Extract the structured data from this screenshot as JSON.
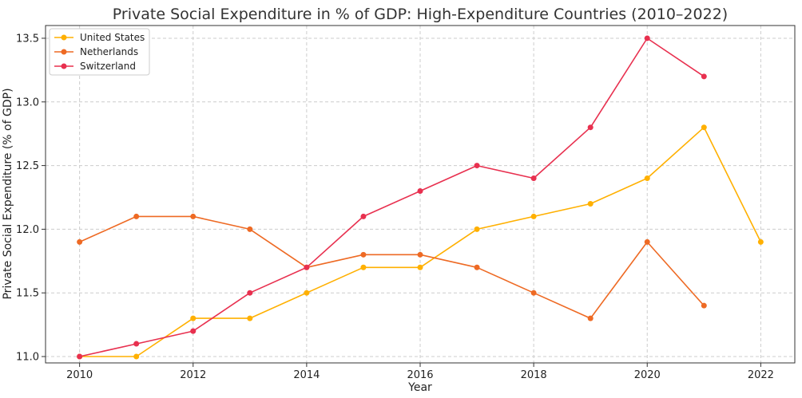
{
  "chart_data": {
    "type": "line",
    "title": "Private Social Expenditure in % of GDP: High-Expenditure Countries (2010–2022)",
    "xlabel": "Year",
    "ylabel": "Private Social Expenditure (% of GDP)",
    "x_ticks": [
      2010,
      2012,
      2014,
      2016,
      2018,
      2020,
      2022
    ],
    "y_ticks": [
      11.0,
      11.5,
      12.0,
      12.5,
      13.0,
      13.5
    ],
    "xlim": [
      2009.4,
      2022.6
    ],
    "ylim": [
      10.95,
      13.6
    ],
    "grid": true,
    "legend_position": "top-left",
    "series": [
      {
        "name": "United States",
        "color": "#FFB000",
        "points": [
          {
            "x": 2010,
            "y": 11.0
          },
          {
            "x": 2011,
            "y": 11.0
          },
          {
            "x": 2012,
            "y": 11.3
          },
          {
            "x": 2013,
            "y": 11.3
          },
          {
            "x": 2014,
            "y": 11.5
          },
          {
            "x": 2015,
            "y": 11.7
          },
          {
            "x": 2016,
            "y": 11.7
          },
          {
            "x": 2017,
            "y": 12.0
          },
          {
            "x": 2018,
            "y": 12.1
          },
          {
            "x": 2019,
            "y": 12.2
          },
          {
            "x": 2020,
            "y": 12.4
          },
          {
            "x": 2021,
            "y": 12.8
          },
          {
            "x": 2022,
            "y": 11.9
          }
        ]
      },
      {
        "name": "Netherlands",
        "color": "#EE6A24",
        "points": [
          {
            "x": 2010,
            "y": 11.9
          },
          {
            "x": 2011,
            "y": 12.1
          },
          {
            "x": 2012,
            "y": 12.1
          },
          {
            "x": 2013,
            "y": 12.0
          },
          {
            "x": 2014,
            "y": 11.7
          },
          {
            "x": 2015,
            "y": 11.8
          },
          {
            "x": 2016,
            "y": 11.8
          },
          {
            "x": 2017,
            "y": 11.7
          },
          {
            "x": 2018,
            "y": 11.5
          },
          {
            "x": 2019,
            "y": 11.3
          },
          {
            "x": 2020,
            "y": 11.9
          },
          {
            "x": 2021,
            "y": 11.4
          }
        ]
      },
      {
        "name": "Switzerland",
        "color": "#E8304F",
        "points": [
          {
            "x": 2010,
            "y": 11.0
          },
          {
            "x": 2011,
            "y": 11.1
          },
          {
            "x": 2012,
            "y": 11.2
          },
          {
            "x": 2013,
            "y": 11.5
          },
          {
            "x": 2014,
            "y": 11.7
          },
          {
            "x": 2015,
            "y": 12.1
          },
          {
            "x": 2016,
            "y": 12.3
          },
          {
            "x": 2017,
            "y": 12.5
          },
          {
            "x": 2018,
            "y": 12.4
          },
          {
            "x": 2019,
            "y": 12.8
          },
          {
            "x": 2020,
            "y": 13.5
          },
          {
            "x": 2021,
            "y": 13.2
          }
        ]
      }
    ]
  }
}
